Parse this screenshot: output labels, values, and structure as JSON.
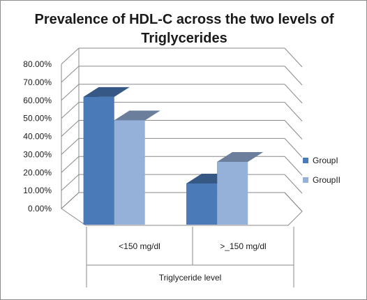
{
  "chart_data": {
    "type": "bar",
    "title_lines": [
      "Prevalence of HDL-C across the two levels of",
      "Triglycerides"
    ],
    "categories": [
      "<150 mg/dl",
      ">_150 mg/dl"
    ],
    "series": [
      {
        "name": "GroupI",
        "values": [
          0.65,
          0.17
        ],
        "color": "#4a7ab8"
      },
      {
        "name": "GroupII",
        "values": [
          0.52,
          0.29
        ],
        "color": "#95b1da"
      }
    ],
    "xlabel": "Triglyceride level",
    "ylabel": "",
    "ylim": [
      0,
      0.8
    ],
    "yticks": [
      "0.00%",
      "10.00%",
      "20.00%",
      "30.00%",
      "40.00%",
      "50.00%",
      "60.00%",
      "70.00%",
      "80.00%"
    ],
    "grid": true,
    "legend_position": "right",
    "style": "3d-clustered-column"
  }
}
